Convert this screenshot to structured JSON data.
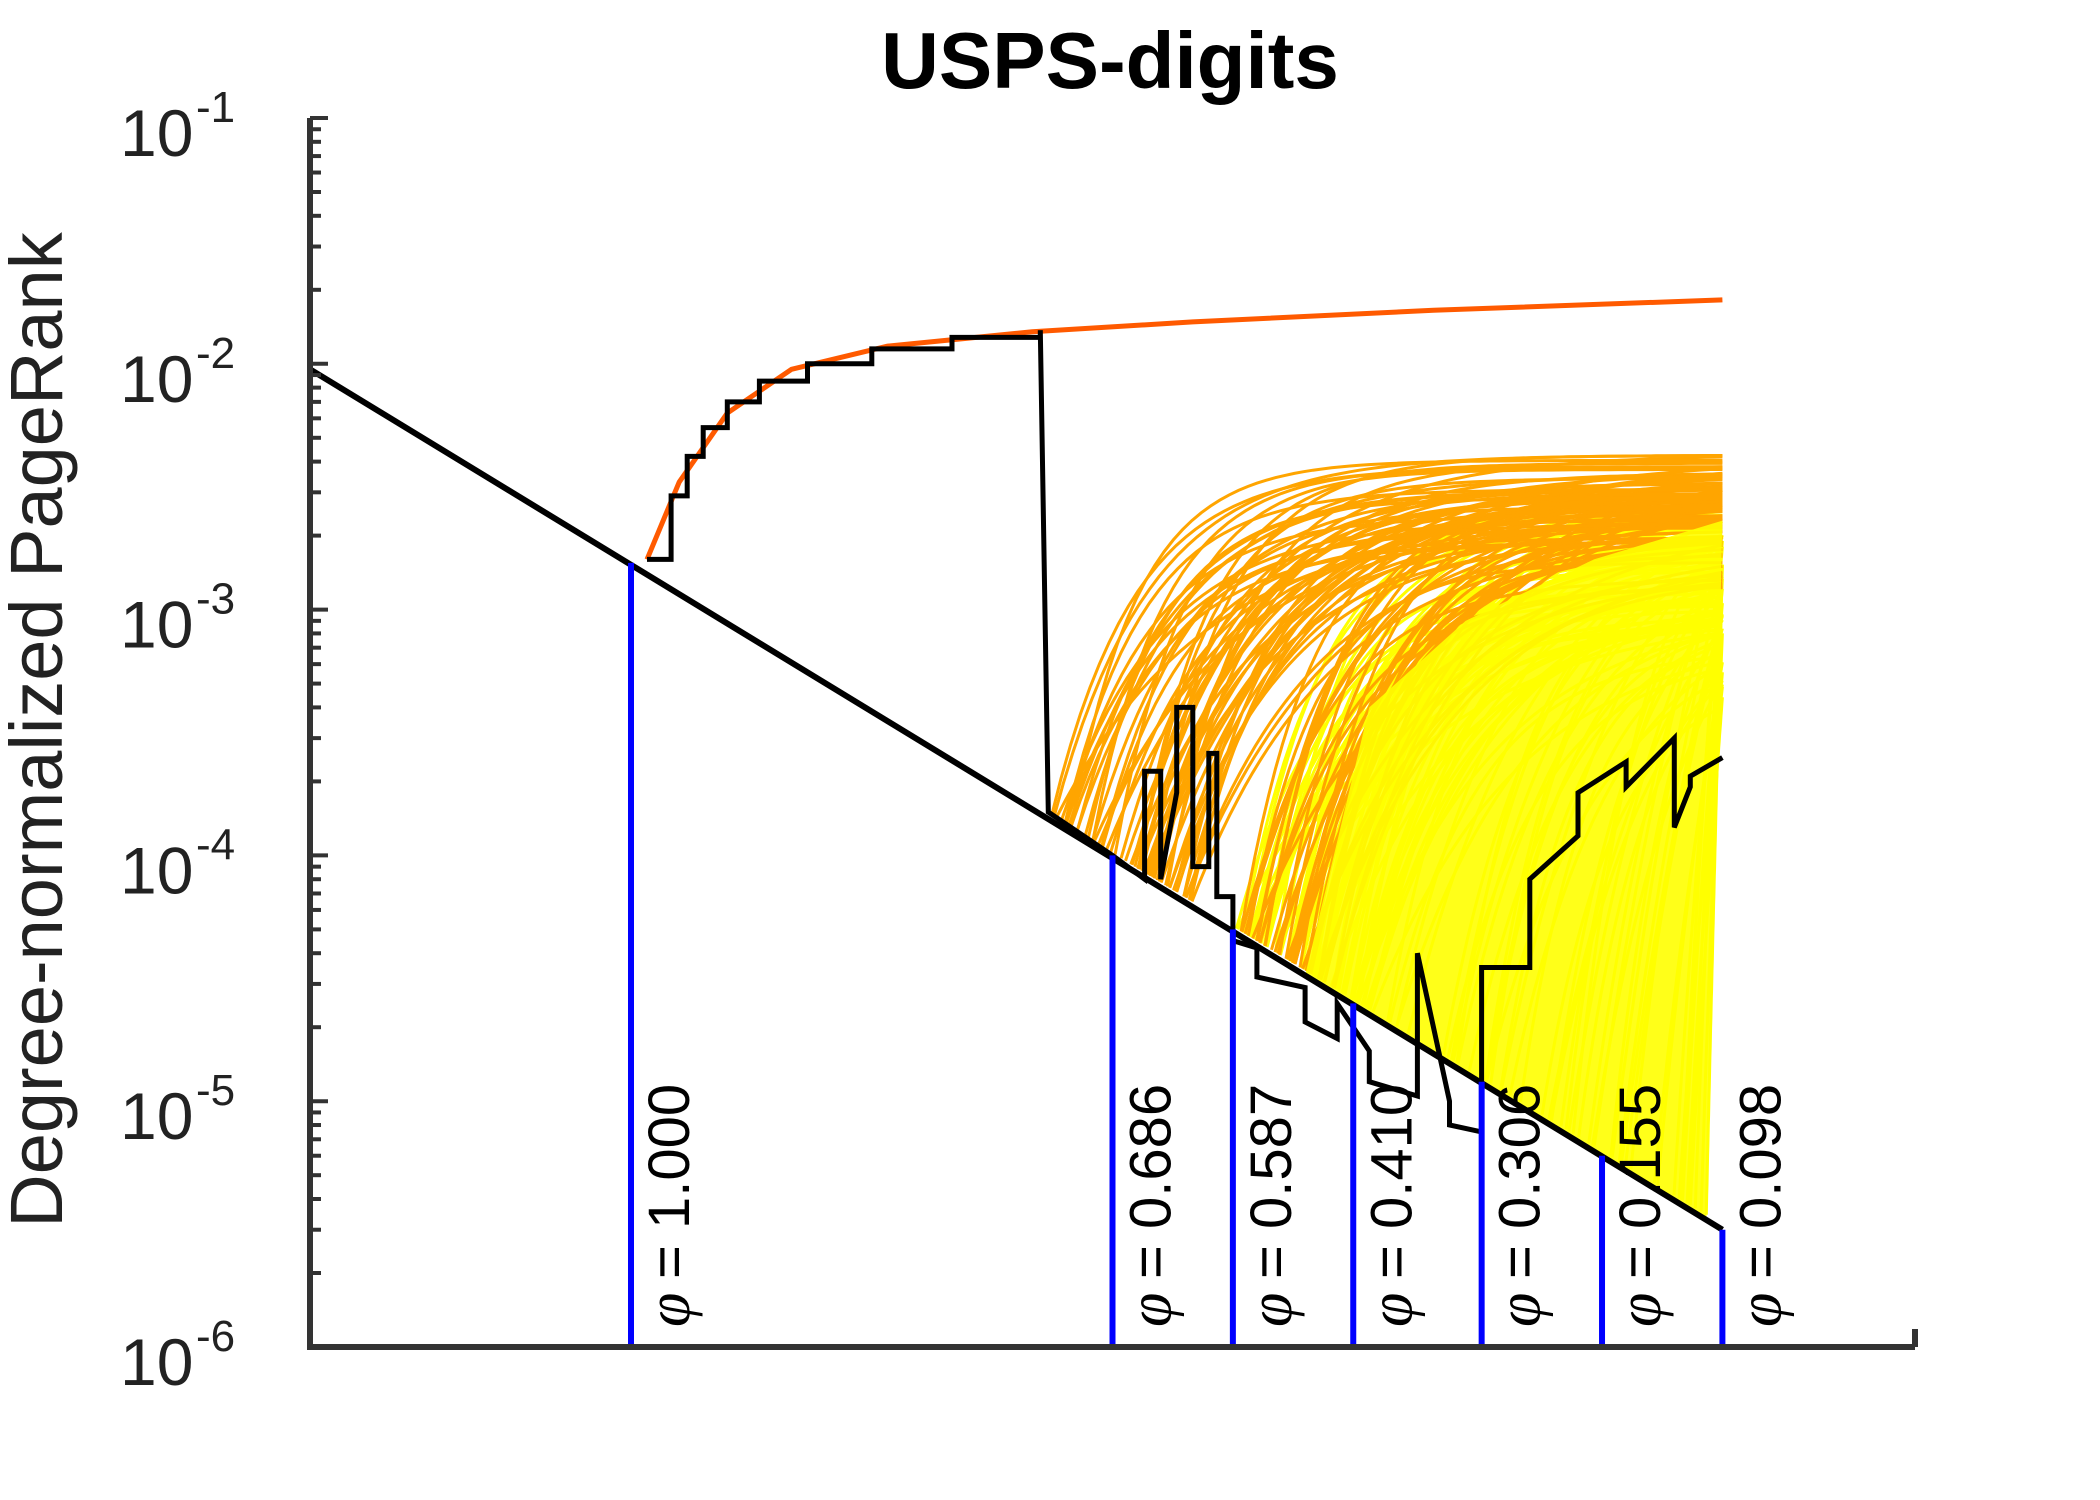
{
  "chart_data": {
    "type": "line",
    "title": "USPS-digits",
    "ylabel": "Degree-normalized PageRank",
    "xlabel": "",
    "y_scale": "log",
    "ylim": [
      1e-06,
      0.1
    ],
    "y_ticks": [
      {
        "base": "10",
        "exp": "-1"
      },
      {
        "base": "10",
        "exp": "-2"
      },
      {
        "base": "10",
        "exp": "-3"
      },
      {
        "base": "10",
        "exp": "-4"
      },
      {
        "base": "10",
        "exp": "-5"
      },
      {
        "base": "10",
        "exp": "-6"
      }
    ],
    "grid": false,
    "colors": {
      "envelope": "#000000",
      "phi_markers": "#0000ff",
      "best_set_curve": "#ff5a00",
      "orange_curves": "#ffa500",
      "yellow_curves": "#ffff00"
    },
    "phi_symbol": "φ",
    "phi_levels": [
      {
        "label": "= 1.000",
        "x": 0.2,
        "y": 0.00155
      },
      {
        "label": "= 0.686",
        "x": 0.5,
        "y": 0.0001
      },
      {
        "label": "= 0.587",
        "x": 0.575,
        "y": 5e-05
      },
      {
        "label": "= 0.410",
        "x": 0.65,
        "y": 2.5e-05
      },
      {
        "label": "= 0.306",
        "x": 0.73,
        "y": 1.2e-05
      },
      {
        "label": "= 0.155",
        "x": 0.805,
        "y": 6e-06
      },
      {
        "label": "= 0.098",
        "x": 0.88,
        "y": 3e-06
      }
    ],
    "baseline": {
      "x": [
        0.0,
        0.88
      ],
      "y": [
        0.0095,
        3e-06
      ]
    },
    "top_curve": {
      "name": "",
      "x": [
        0.21,
        0.23,
        0.26,
        0.3,
        0.36,
        0.45,
        0.55,
        0.7,
        0.88
      ],
      "y": [
        0.0016,
        0.0033,
        0.0063,
        0.0095,
        0.0118,
        0.0135,
        0.0148,
        0.0165,
        0.0182
      ]
    },
    "envelope_curve": {
      "x": [
        0.21,
        0.225,
        0.225,
        0.235,
        0.235,
        0.245,
        0.245,
        0.26,
        0.26,
        0.28,
        0.28,
        0.31,
        0.31,
        0.35,
        0.35,
        0.4,
        0.4,
        0.455,
        0.455,
        0.46,
        0.5,
        0.52,
        0.52,
        0.53,
        0.53,
        0.54,
        0.54,
        0.55,
        0.55,
        0.56,
        0.56,
        0.565,
        0.565,
        0.575,
        0.575,
        0.59,
        0.59,
        0.62,
        0.62,
        0.64,
        0.64,
        0.66,
        0.66,
        0.69,
        0.69,
        0.71,
        0.71,
        0.73,
        0.73,
        0.76,
        0.76,
        0.79,
        0.79,
        0.82,
        0.82,
        0.85,
        0.85,
        0.86,
        0.86,
        0.88
      ],
      "y": [
        0.0016,
        0.0016,
        0.0029,
        0.0029,
        0.0042,
        0.0042,
        0.0055,
        0.0055,
        0.007,
        0.007,
        0.0085,
        0.0085,
        0.01,
        0.01,
        0.0115,
        0.0115,
        0.0128,
        0.0128,
        0.0137,
        0.00015,
        0.0001,
        8e-05,
        0.00022,
        0.00022,
        8e-05,
        0.00018,
        0.0004,
        0.0004,
        9e-05,
        9e-05,
        0.00026,
        0.00026,
        6.8e-05,
        6.8e-05,
        4.5e-05,
        4.2e-05,
        3.2e-05,
        2.9e-05,
        2.1e-05,
        1.8e-05,
        2.5e-05,
        1.6e-05,
        1.2e-05,
        1.05e-05,
        4e-05,
        1e-05,
        8e-06,
        7.5e-06,
        3.5e-05,
        3.5e-05,
        8e-05,
        0.00012,
        0.00018,
        0.00024,
        0.00019,
        0.0003,
        0.00013,
        0.00019,
        0.00021,
        0.00025
      ]
    }
  }
}
